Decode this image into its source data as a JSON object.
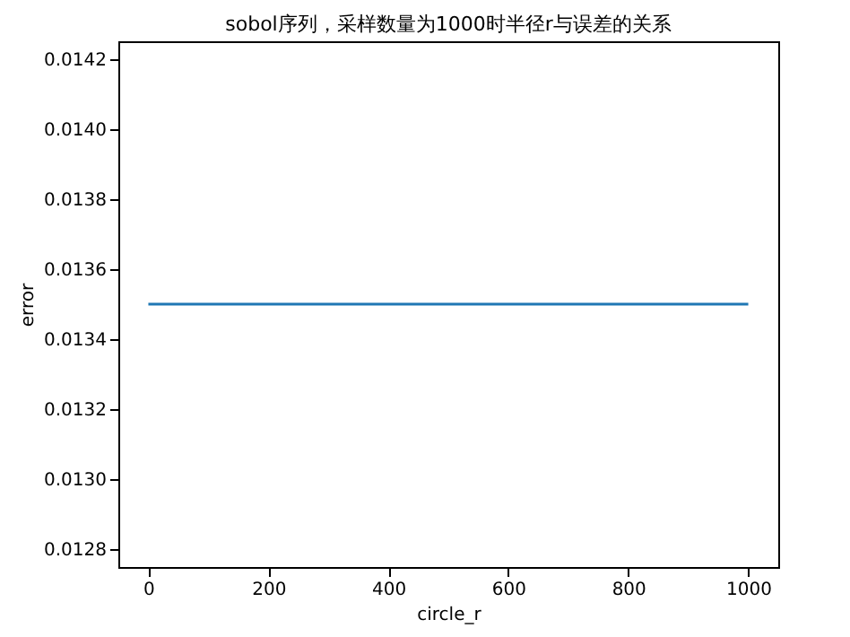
{
  "chart_data": {
    "type": "line",
    "title": "sobol序列，采样数量为1000时半径r与误差的关系",
    "xlabel": "circle_r",
    "ylabel": "error",
    "x": [
      0,
      1000
    ],
    "series": [
      {
        "color": "#1f77b4",
        "values": [
          0.0135,
          0.0135
        ]
      }
    ],
    "xlim": [
      -50,
      1050
    ],
    "xticks": [
      0,
      200,
      400,
      600,
      800,
      1000
    ],
    "ylim": [
      0.01275,
      0.01425
    ],
    "yticks": [
      {
        "value": 0.0128,
        "label": "0.0128"
      },
      {
        "value": 0.013,
        "label": "0.0130"
      },
      {
        "value": 0.0132,
        "label": "0.0132"
      },
      {
        "value": 0.0134,
        "label": "0.0134"
      },
      {
        "value": 0.0136,
        "label": "0.0136"
      },
      {
        "value": 0.0138,
        "label": "0.0138"
      },
      {
        "value": 0.014,
        "label": "0.0140"
      },
      {
        "value": 0.0142,
        "label": "0.0142"
      }
    ],
    "grid": false,
    "legend": false,
    "marker": "none",
    "line_style": "solid"
  }
}
